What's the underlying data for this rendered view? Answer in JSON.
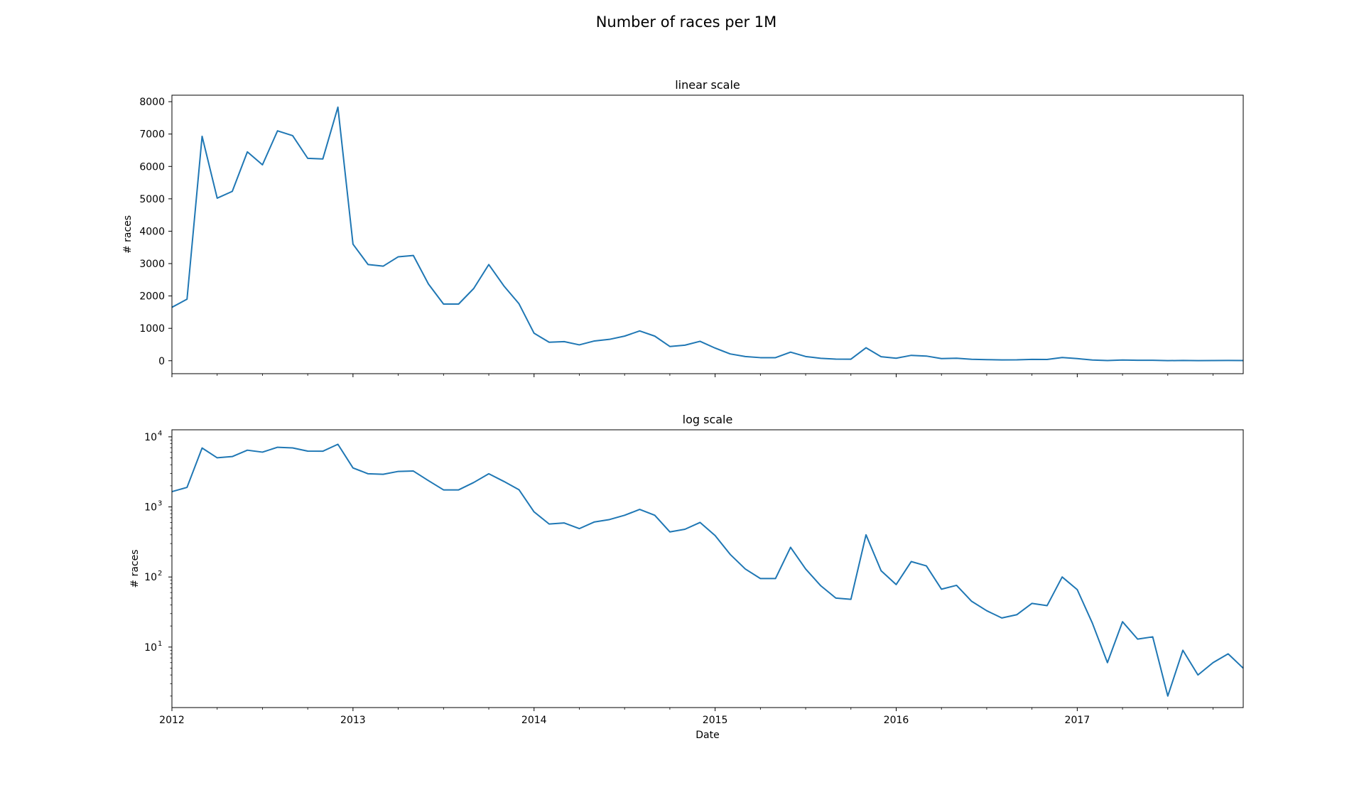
{
  "figure": {
    "title": "Number of races per 1M"
  },
  "chart_data": [
    {
      "type": "line",
      "title": "linear scale",
      "xlabel": "",
      "ylabel": "# races",
      "yscale": "linear",
      "ylim": [
        -400,
        8200
      ],
      "yticks": [
        0,
        1000,
        2000,
        3000,
        4000,
        5000,
        6000,
        7000,
        8000
      ],
      "ytick_labels": [
        "0",
        "1000",
        "2000",
        "3000",
        "4000",
        "5000",
        "6000",
        "7000",
        "8000"
      ],
      "xlim": [
        0,
        71
      ],
      "xticks": [
        0,
        12,
        24,
        36,
        48,
        60
      ],
      "xtick_labels": [],
      "x_minor_ticks": [
        3,
        6,
        9,
        15,
        18,
        21,
        27,
        30,
        33,
        39,
        42,
        45,
        51,
        54,
        57,
        63,
        66,
        69
      ],
      "series": [
        {
          "name": "races",
          "color": "#1f77b4",
          "x": [
            0,
            1,
            2,
            3,
            4,
            5,
            6,
            7,
            8,
            9,
            10,
            11,
            12,
            13,
            14,
            15,
            16,
            17,
            18,
            19,
            20,
            21,
            22,
            23,
            24,
            25,
            26,
            27,
            28,
            29,
            30,
            31,
            32,
            33,
            34,
            35,
            36,
            37,
            38,
            39,
            40,
            41,
            42,
            43,
            44,
            45,
            46,
            47,
            48,
            49,
            50,
            51,
            52,
            53,
            54,
            55,
            56,
            57,
            58,
            59,
            60,
            61,
            62,
            63,
            64,
            65,
            66,
            67,
            68,
            69,
            70,
            71
          ],
          "values": [
            1650,
            1900,
            6930,
            5020,
            5230,
            6450,
            6050,
            7100,
            6950,
            6250,
            6230,
            7830,
            3600,
            2970,
            2920,
            3210,
            3250,
            2370,
            1750,
            1750,
            2230,
            2970,
            2310,
            1760,
            850,
            570,
            590,
            490,
            610,
            660,
            760,
            920,
            760,
            440,
            480,
            600,
            390,
            210,
            130,
            95,
            95,
            265,
            130,
            75,
            50,
            48,
            400,
            123,
            78,
            166,
            144,
            67,
            76,
            45,
            33,
            26,
            29,
            42,
            39,
            100,
            66,
            22,
            6,
            23,
            13,
            14,
            2,
            9,
            4,
            6,
            8,
            5
          ]
        }
      ]
    },
    {
      "type": "line",
      "title": "log scale",
      "xlabel": "Date",
      "ylabel": "# races",
      "yscale": "log",
      "ylim": [
        1.37,
        12600
      ],
      "yticks": [
        10,
        100,
        1000,
        10000
      ],
      "ytick_labels": [
        {
          "base": "10",
          "exp": "1"
        },
        {
          "base": "10",
          "exp": "2"
        },
        {
          "base": "10",
          "exp": "3"
        },
        {
          "base": "10",
          "exp": "4"
        }
      ],
      "xlim": [
        0,
        71
      ],
      "xticks": [
        0,
        12,
        24,
        36,
        48,
        60
      ],
      "xtick_labels": [
        "2012",
        "2013",
        "2014",
        "2015",
        "2016",
        "2017"
      ],
      "x_minor_ticks": [
        3,
        6,
        9,
        15,
        18,
        21,
        27,
        30,
        33,
        39,
        42,
        45,
        51,
        54,
        57,
        63,
        66,
        69
      ],
      "series": [
        {
          "name": "races",
          "color": "#1f77b4",
          "x": [
            0,
            1,
            2,
            3,
            4,
            5,
            6,
            7,
            8,
            9,
            10,
            11,
            12,
            13,
            14,
            15,
            16,
            17,
            18,
            19,
            20,
            21,
            22,
            23,
            24,
            25,
            26,
            27,
            28,
            29,
            30,
            31,
            32,
            33,
            34,
            35,
            36,
            37,
            38,
            39,
            40,
            41,
            42,
            43,
            44,
            45,
            46,
            47,
            48,
            49,
            50,
            51,
            52,
            53,
            54,
            55,
            56,
            57,
            58,
            59,
            60,
            61,
            62,
            63,
            64,
            65,
            66,
            67,
            68,
            69,
            70,
            71
          ],
          "values": [
            1650,
            1900,
            6930,
            5020,
            5230,
            6450,
            6050,
            7100,
            6950,
            6250,
            6230,
            7830,
            3600,
            2970,
            2920,
            3210,
            3250,
            2370,
            1750,
            1750,
            2230,
            2970,
            2310,
            1760,
            850,
            570,
            590,
            490,
            610,
            660,
            760,
            920,
            760,
            440,
            480,
            600,
            390,
            210,
            130,
            95,
            95,
            265,
            130,
            75,
            50,
            48,
            400,
            123,
            78,
            166,
            144,
            67,
            76,
            45,
            33,
            26,
            29,
            42,
            39,
            100,
            66,
            22,
            6,
            23,
            13,
            14,
            2,
            9,
            4,
            6,
            8,
            5
          ]
        }
      ]
    }
  ]
}
